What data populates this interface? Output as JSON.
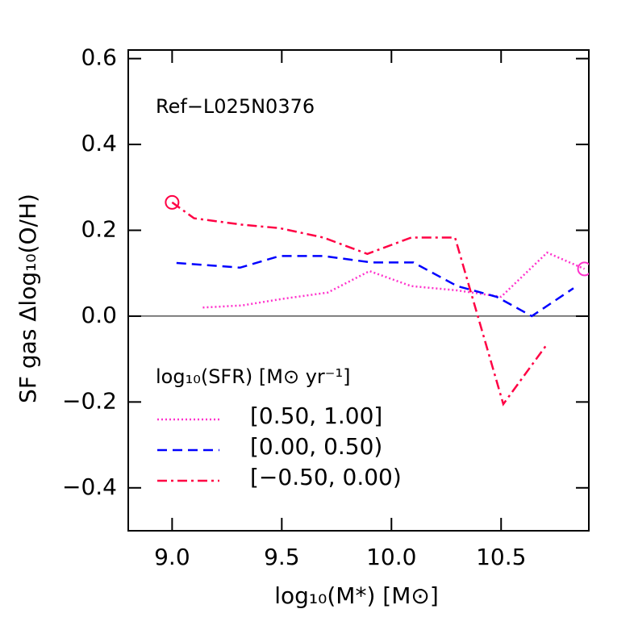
{
  "chart_data": {
    "type": "line",
    "annotation": "Ref−L025N0376",
    "x_label": "log₁₀(M*) [M⊙]",
    "y_label": "SF gas Δlog₁₀(O/H)",
    "legend_title": "log₁₀(SFR) [M⊙ yr⁻¹]",
    "legend_position": "lower left",
    "xlim": [
      8.8,
      10.9
    ],
    "ylim": [
      -0.5,
      0.62
    ],
    "xticks": [
      {
        "value": 9.0,
        "label": "9.0"
      },
      9.5,
      {
        "value": 10.0,
        "label": "10.0"
      },
      10.5
    ],
    "yticks": [
      {
        "value": -0.4,
        "label": "−0.4"
      },
      {
        "value": -0.2,
        "label": "−0.2"
      },
      {
        "value": 0,
        "label": "0.0"
      },
      0.2,
      0.4,
      0.6
    ],
    "reference_line": 0,
    "series": [
      {
        "name": "[0.50, 1.00]",
        "color": "#ff33cc",
        "dash": "dotted",
        "open_circle": "last",
        "x": [
          9.14,
          9.32,
          9.5,
          9.71,
          9.9,
          10.09,
          10.3,
          10.5,
          10.71,
          10.88
        ],
        "values": [
          0.02,
          0.025,
          0.04,
          0.055,
          0.105,
          0.07,
          0.06,
          0.045,
          0.148,
          0.11
        ]
      },
      {
        "name": "[0.00, 0.50)",
        "color": "#0000ff",
        "dash": "dashed",
        "x": [
          9.02,
          9.31,
          9.49,
          9.69,
          9.91,
          10.1,
          10.3,
          10.48,
          10.64,
          10.83
        ],
        "values": [
          0.124,
          0.113,
          0.14,
          0.14,
          0.125,
          0.125,
          0.07,
          0.045,
          0.0,
          0.065
        ]
      },
      {
        "name": "[−0.50, 0.00)",
        "color": "#ff0044",
        "dash": "dashdot",
        "open_circle": "first",
        "x": [
          9.0,
          9.1,
          9.32,
          9.49,
          9.69,
          9.89,
          10.09,
          10.29,
          10.51,
          10.71
        ],
        "values": [
          0.265,
          0.228,
          0.213,
          0.205,
          0.183,
          0.145,
          0.183,
          0.183,
          -0.205,
          -0.065
        ]
      }
    ]
  }
}
